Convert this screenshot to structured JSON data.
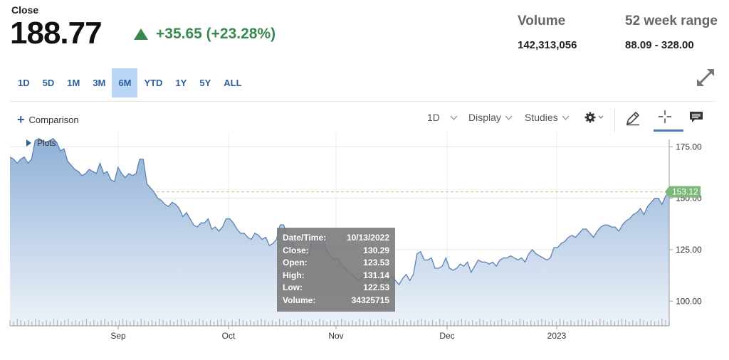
{
  "quote": {
    "close_label": "Close",
    "price": "188.77",
    "change": "+35.65 (+23.28%)",
    "volume_label": "Volume",
    "volume_value": "142,313,056",
    "range_label": "52 week range",
    "range_value": "88.09 - 328.00"
  },
  "periods": [
    {
      "label": "1D",
      "active": false
    },
    {
      "label": "5D",
      "active": false
    },
    {
      "label": "1M",
      "active": false
    },
    {
      "label": "3M",
      "active": false
    },
    {
      "label": "6M",
      "active": true
    },
    {
      "label": "YTD",
      "active": false
    },
    {
      "label": "1Y",
      "active": false
    },
    {
      "label": "5Y",
      "active": false
    },
    {
      "label": "ALL",
      "active": false
    }
  ],
  "toolbar": {
    "comparison_label": "Comparison",
    "interval_label": "1D",
    "display_label": "Display",
    "studies_label": "Studies",
    "plots_label": "Plots",
    "icons": [
      "gear-icon",
      "pencil-icon",
      "crosshair-icon",
      "comment-icon"
    ]
  },
  "tooltip": {
    "rows": [
      {
        "label": "Date/Time:",
        "value": "10/13/2022"
      },
      {
        "label": "Close:",
        "value": "130.29"
      },
      {
        "label": "Open:",
        "value": "123.53"
      },
      {
        "label": "High:",
        "value": "131.14"
      },
      {
        "label": "Low:",
        "value": "122.53"
      },
      {
        "label": "Volume:",
        "value": "34325715"
      }
    ]
  },
  "colors": {
    "line": "#5b82b5",
    "fill_top": "#8fb0d6",
    "fill_bottom": "#eef3fa",
    "positive": "#3a8a4e",
    "reference_label": "#7cb87a",
    "active_period": "#b9d5f5"
  },
  "chart_data": {
    "type": "area",
    "x_axis_labels": [
      "Sep",
      "Oct",
      "Nov",
      "Dec",
      "2023"
    ],
    "y_ticks": [
      100,
      125,
      150,
      175
    ],
    "y_tick_labels": [
      "100.00",
      "125.00",
      "150.00",
      "175.00"
    ],
    "ylim": [
      88,
      182
    ],
    "reference_line": {
      "value": 153.12,
      "label": "153.12"
    },
    "grid": true,
    "series": [
      {
        "values": [
          170,
          169,
          167,
          169,
          170,
          167,
          169,
          178,
          179,
          178,
          177,
          178,
          179,
          177,
          173,
          174,
          168,
          166,
          164,
          163,
          161,
          162,
          164,
          163,
          162,
          167,
          162,
          163,
          159,
          158,
          165,
          162,
          160,
          162,
          161,
          162,
          169,
          169,
          157,
          155,
          153,
          150,
          149,
          147,
          146,
          148,
          147,
          145,
          141,
          143,
          140,
          137,
          136,
          138,
          138,
          140,
          135,
          136,
          134,
          136,
          140,
          140,
          138,
          135,
          133,
          133,
          131,
          130,
          133,
          132,
          130,
          131,
          127,
          128,
          130,
          137,
          137,
          131,
          131,
          126,
          123,
          124,
          122,
          122,
          131,
          131,
          131,
          130,
          124,
          122,
          120,
          121,
          118,
          116,
          114,
          113,
          111,
          110,
          112,
          111,
          111,
          112,
          111,
          108,
          111,
          110,
          112,
          110,
          108,
          111,
          113,
          110,
          113,
          123,
          124,
          120,
          120,
          121,
          116,
          116,
          117,
          121,
          116,
          115,
          116,
          118,
          117,
          119,
          114,
          117,
          120,
          119,
          119,
          118,
          119,
          117,
          120,
          121,
          121,
          122,
          121,
          120,
          121,
          119,
          123,
          125,
          123,
          122,
          121,
          120,
          121,
          126,
          126,
          128,
          129,
          131,
          132,
          131,
          133,
          135,
          135,
          133,
          131,
          134,
          136,
          137,
          137,
          136,
          136,
          134,
          137,
          139,
          140,
          142,
          143,
          145,
          142,
          146,
          148,
          150,
          150,
          147,
          151,
          153
        ]
      }
    ],
    "volume_bars": [
      4,
      3,
      5,
      4,
      3,
      4,
      3,
      5,
      4,
      3,
      4,
      3,
      5,
      4,
      3,
      4,
      5,
      3,
      4,
      3,
      4,
      5,
      3,
      4,
      3,
      4,
      5,
      3,
      4,
      3,
      4,
      5,
      4,
      3,
      4,
      3,
      5,
      4,
      3,
      4,
      3,
      5,
      4,
      3,
      4,
      3,
      4,
      5,
      4,
      3,
      4,
      3,
      5,
      4,
      3,
      4,
      3,
      4,
      5,
      4,
      3,
      4,
      3,
      5,
      4,
      3,
      4,
      3,
      4,
      5,
      4,
      3,
      4,
      3,
      5,
      4,
      3,
      4,
      3,
      4,
      5,
      4,
      3,
      4,
      3,
      5,
      4,
      3,
      4,
      3,
      4,
      5,
      4,
      3,
      4,
      3,
      5,
      4,
      3,
      4,
      3,
      4,
      5,
      4,
      3,
      4,
      3,
      5,
      4,
      3,
      4,
      3,
      4,
      5,
      4,
      3,
      4,
      3,
      5,
      4,
      3,
      4,
      3,
      4,
      5,
      4,
      3,
      4,
      3,
      5,
      4,
      3,
      4,
      3,
      4,
      5,
      4,
      3,
      4,
      3,
      5,
      4,
      3,
      4,
      3,
      4,
      5,
      4,
      3,
      4,
      3,
      5,
      4,
      3,
      4,
      3,
      4,
      5,
      4,
      3,
      4,
      3,
      5,
      4,
      3,
      4,
      3,
      4,
      5,
      4,
      3,
      4,
      3,
      5,
      4,
      3,
      4,
      3,
      4,
      5,
      4,
      3
    ]
  }
}
